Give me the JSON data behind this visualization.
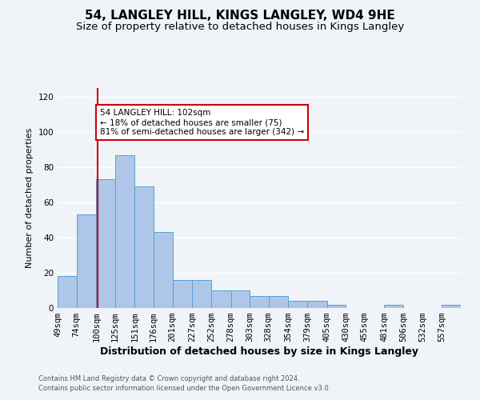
{
  "title": "54, LANGLEY HILL, KINGS LANGLEY, WD4 9HE",
  "subtitle": "Size of property relative to detached houses in Kings Langley",
  "xlabel": "Distribution of detached houses by size in Kings Langley",
  "ylabel": "Number of detached properties",
  "footnote1": "Contains HM Land Registry data © Crown copyright and database right 2024.",
  "footnote2": "Contains public sector information licensed under the Open Government Licence v3.0.",
  "annotation_title": "54 LANGLEY HILL: 102sqm",
  "annotation_line1": "← 18% of detached houses are smaller (75)",
  "annotation_line2": "81% of semi-detached houses are larger (342) →",
  "property_sqm": 102,
  "bar_labels": [
    "49sqm",
    "74sqm",
    "100sqm",
    "125sqm",
    "151sqm",
    "176sqm",
    "201sqm",
    "227sqm",
    "252sqm",
    "278sqm",
    "303sqm",
    "328sqm",
    "354sqm",
    "379sqm",
    "405sqm",
    "430sqm",
    "455sqm",
    "481sqm",
    "506sqm",
    "532sqm",
    "557sqm"
  ],
  "bar_values": [
    18,
    53,
    73,
    87,
    69,
    43,
    16,
    16,
    10,
    10,
    7,
    7,
    4,
    4,
    2,
    0,
    0,
    2,
    0,
    0,
    2
  ],
  "bin_edges": [
    49,
    74,
    100,
    125,
    151,
    176,
    201,
    227,
    252,
    278,
    303,
    328,
    354,
    379,
    405,
    430,
    455,
    481,
    506,
    532,
    557,
    582
  ],
  "bar_color": "#aec6e8",
  "bar_edge_color": "#5a9fd4",
  "vline_color": "#cc0000",
  "vline_x": 102,
  "annotation_box_color": "#cc0000",
  "background_color": "#f0f4f8",
  "plot_background": "#f0f4f8",
  "ylim": [
    0,
    125
  ],
  "yticks": [
    0,
    20,
    40,
    60,
    80,
    100,
    120
  ],
  "grid_color": "#ffffff",
  "title_fontsize": 11,
  "subtitle_fontsize": 9.5,
  "ylabel_fontsize": 8,
  "xlabel_fontsize": 9,
  "tick_fontsize": 7.5,
  "annotation_fontsize": 7.5,
  "footnote_fontsize": 6
}
